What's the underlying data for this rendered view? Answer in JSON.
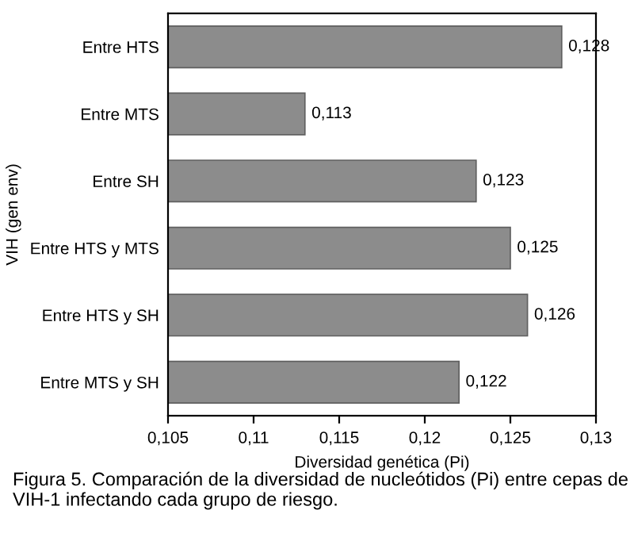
{
  "chart_data": {
    "type": "bar",
    "orientation": "horizontal",
    "xlabel": "Diversidad genética (Pi)",
    "ylabel": "VIH (gen env)",
    "categories": [
      "Entre HTS",
      "Entre MTS",
      "Entre SH",
      "Entre HTS y MTS",
      "Entre HTS y SH",
      "Entre MTS y SH"
    ],
    "values": [
      0.128,
      0.113,
      0.123,
      0.125,
      0.126,
      0.122
    ],
    "value_labels": [
      "0,128",
      "0,113",
      "0,123",
      "0,125",
      "0,126",
      "0,122"
    ],
    "color": "#8c8c8c",
    "xlim": [
      0.105,
      0.13
    ],
    "xticks": [
      {
        "value": 0.105,
        "label": "0,105"
      },
      {
        "value": 0.11,
        "label": "0,11"
      },
      {
        "value": 0.115,
        "label": "0,115"
      },
      {
        "value": 0.12,
        "label": "0,12"
      },
      {
        "value": 0.125,
        "label": "0,125"
      },
      {
        "value": 0.13,
        "label": "0,13"
      }
    ],
    "grid": false,
    "legend": false,
    "annotations": [
      "Figura 5. Comparación de la diversidad de nucleótidos (Pi) entre cepas de VIH-1 infectando cada grupo de riesgo."
    ]
  }
}
